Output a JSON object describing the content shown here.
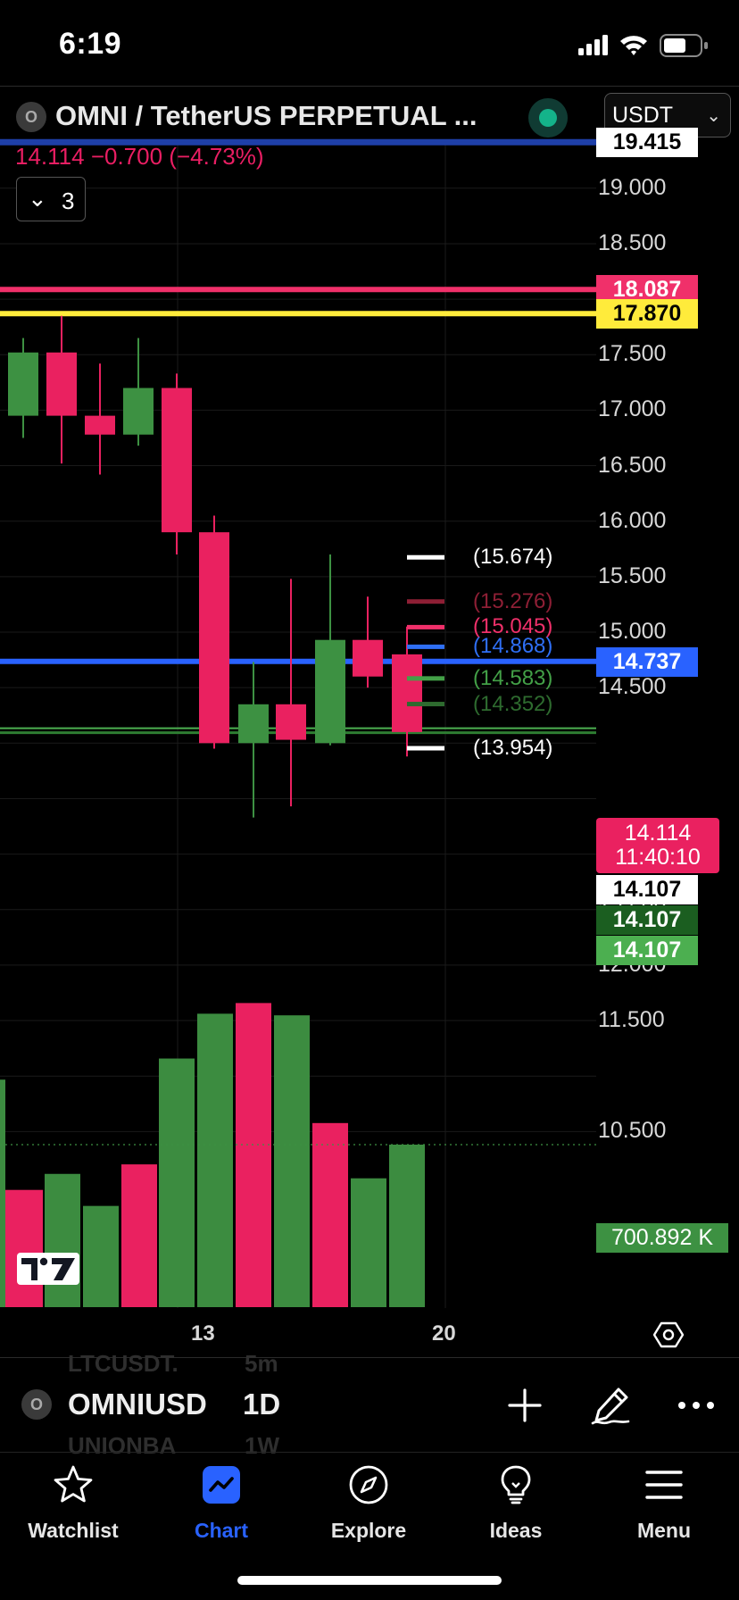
{
  "status_bar": {
    "time": "6:19"
  },
  "header": {
    "symbol_badge": "O",
    "title": "OMNI / TetherUS PERPETUAL ...",
    "currency": "USDT",
    "price_change": "14.114 −0.700 (−4.73%)",
    "collapse_count": "3"
  },
  "chart_data": {
    "type": "candlestick",
    "timeframe": "1D",
    "price_axis": {
      "ylim": [
        10.45,
        19.6
      ],
      "ticks": [
        "19.000",
        "18.500",
        "17.500",
        "17.000",
        "16.500",
        "16.000",
        "15.500",
        "15.000",
        "14.500",
        "13.000",
        "12.500",
        "12.000",
        "11.500",
        "10.500"
      ]
    },
    "date_labels": [
      "13",
      "20"
    ],
    "candles": [
      {
        "open": 16.95,
        "high": 17.65,
        "low": 16.75,
        "close": 17.52
      },
      {
        "open": 17.52,
        "high": 17.85,
        "low": 16.52,
        "close": 16.95
      },
      {
        "open": 16.95,
        "high": 17.42,
        "low": 16.42,
        "close": 16.78
      },
      {
        "open": 16.78,
        "high": 17.65,
        "low": 16.68,
        "close": 17.2
      },
      {
        "open": 17.2,
        "high": 17.33,
        "low": 15.7,
        "close": 15.9
      },
      {
        "open": 15.9,
        "high": 16.05,
        "low": 13.95,
        "close": 14.0
      },
      {
        "open": 14.0,
        "high": 14.73,
        "low": 13.33,
        "close": 14.35
      },
      {
        "open": 14.35,
        "high": 15.48,
        "low": 13.43,
        "close": 14.03
      },
      {
        "open": 14.0,
        "high": 15.7,
        "low": 13.98,
        "close": 14.93
      },
      {
        "open": 14.93,
        "high": 15.32,
        "low": 14.5,
        "close": 14.6
      },
      {
        "open": 14.8,
        "high": 15.05,
        "low": 13.88,
        "close": 14.1
      }
    ],
    "volumes": [
      {
        "value": 0.98,
        "dir": "up",
        "partial": true
      },
      {
        "value": 0.505,
        "dir": "down"
      },
      {
        "value": 0.574,
        "dir": "up"
      },
      {
        "value": 0.436,
        "dir": "up"
      },
      {
        "value": 0.615,
        "dir": "down"
      },
      {
        "value": 1.071,
        "dir": "up"
      },
      {
        "value": 1.264,
        "dir": "up"
      },
      {
        "value": 1.31,
        "dir": "down"
      },
      {
        "value": 1.257,
        "dir": "up"
      },
      {
        "value": 0.793,
        "dir": "down"
      },
      {
        "value": 0.555,
        "dir": "up"
      },
      {
        "value": 0.7,
        "dir": "up"
      }
    ],
    "volume_last_label": "700.892 K",
    "horizontal_lines": [
      {
        "price": 19.415,
        "label": "19.415",
        "color": "#1e3fa8",
        "label_bg": "#ffffff",
        "label_fg": "#000000"
      },
      {
        "price": 18.087,
        "label": "18.087",
        "color": "#f0306a",
        "label_bg": "#f0306a",
        "label_fg": "#ffffff"
      },
      {
        "price": 17.87,
        "label": "17.870",
        "color": "#ffeb3b",
        "label_bg": "#ffeb3b",
        "label_fg": "#000000"
      },
      {
        "price": 14.737,
        "label": "14.737",
        "color": "#2962ff",
        "label_bg": "#2962ff",
        "label_fg": "#ffffff"
      }
    ],
    "current_price": {
      "value": "14.114",
      "countdown": "11:40:10"
    },
    "extra_axis_labels": [
      {
        "label": "14.107",
        "bg": "#ffffff",
        "fg": "#000000"
      },
      {
        "label": "14.107",
        "bg": "#1b5e20",
        "fg": "#ffffff"
      },
      {
        "label": "14.107",
        "bg": "#4caf50",
        "fg": "#ffffff"
      }
    ],
    "position_levels": [
      {
        "price": 15.674,
        "label": "(15.674)",
        "color": "#ffffff"
      },
      {
        "price": 15.276,
        "label": "(15.276)",
        "color": "#8e1f35"
      },
      {
        "price": 15.045,
        "label": "(15.045)",
        "color": "#f0306a"
      },
      {
        "price": 14.868,
        "label": "(14.868)",
        "color": "#2f6ff5"
      },
      {
        "price": 14.583,
        "label": "(14.583)",
        "color": "#43a047"
      },
      {
        "price": 14.352,
        "label": "(14.352)",
        "color": "#2e6b2f"
      },
      {
        "price": 13.954,
        "label": "(13.954)",
        "color": "#ffffff"
      }
    ],
    "colors": {
      "up": "#3d9142",
      "down": "#ea2160"
    }
  },
  "symbol_bar": {
    "badge": "O",
    "symbol": "OMNIUSD",
    "interval": "1D",
    "ghost_top_symbol": "LTCUSDT.",
    "ghost_top_interval": "5m",
    "ghost_bottom_symbol": "UNIONBA",
    "ghost_bottom_interval": "1W"
  },
  "tabs": [
    {
      "label": "Watchlist",
      "icon": "star-icon"
    },
    {
      "label": "Chart",
      "icon": "chart-icon",
      "active": true
    },
    {
      "label": "Explore",
      "icon": "compass-icon"
    },
    {
      "label": "Ideas",
      "icon": "lightbulb-icon"
    },
    {
      "label": "Menu",
      "icon": "hamburger-icon"
    }
  ]
}
